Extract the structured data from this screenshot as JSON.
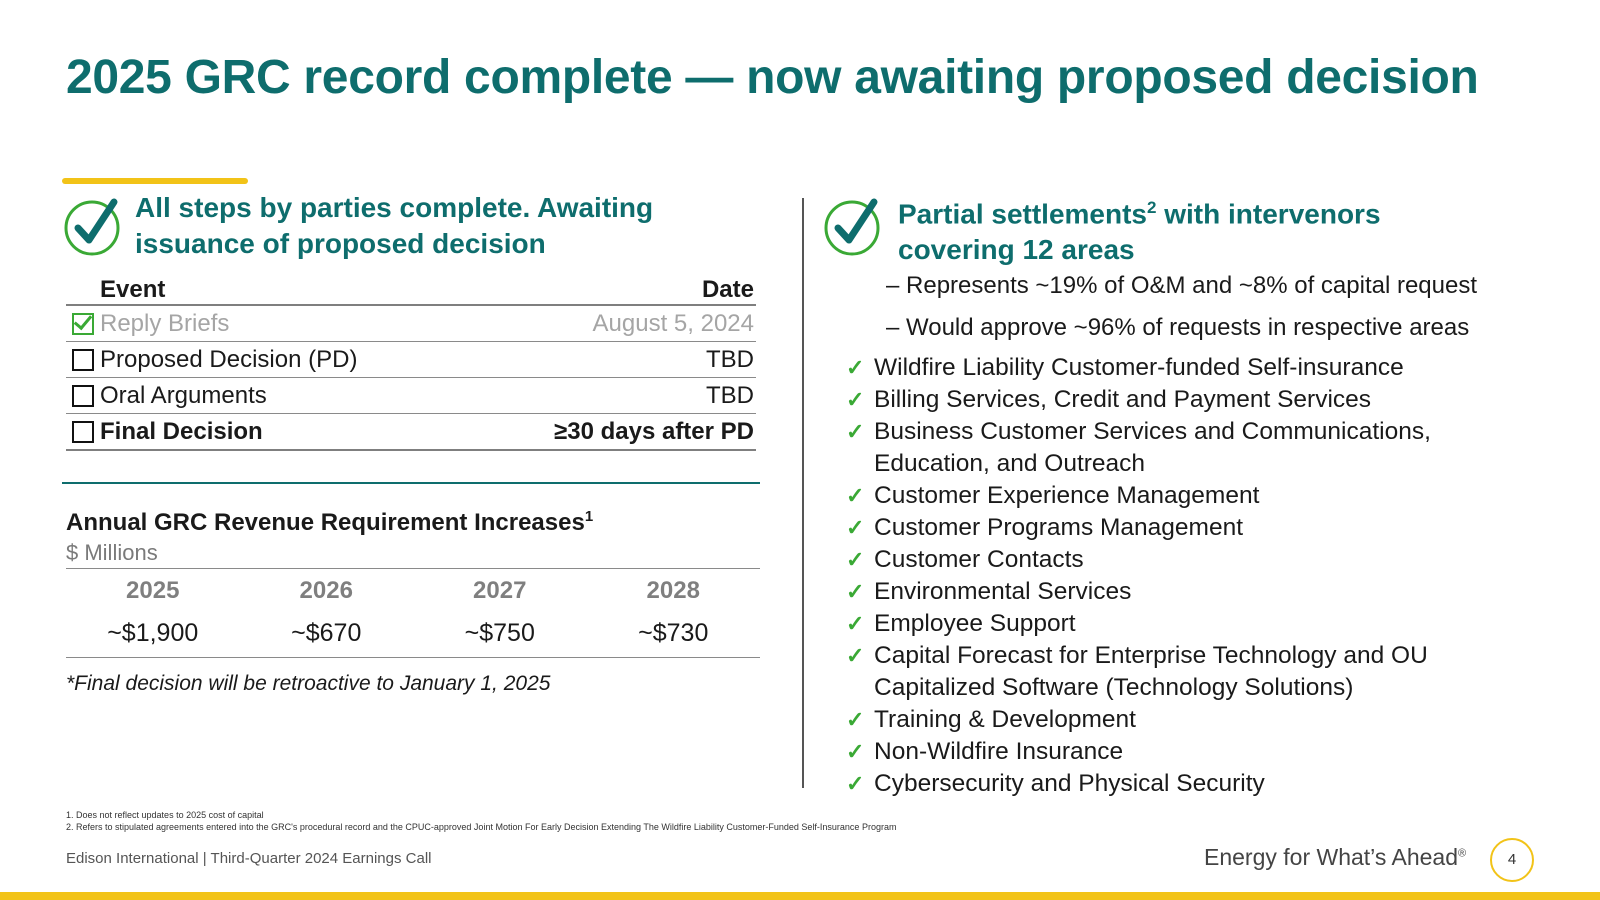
{
  "slide": {
    "title": "2025 GRC record complete — now awaiting proposed decision"
  },
  "left_panel": {
    "heading_line1": "All steps by parties complete. Awaiting",
    "heading_line2": "issuance of proposed decision",
    "table_header": {
      "event": "Event",
      "date": "Date"
    },
    "events": [
      {
        "event": "Reply Briefs",
        "date": "August 5, 2024",
        "status": "done"
      },
      {
        "event": "Proposed Decision (PD)",
        "date": "TBD",
        "status": "pending"
      },
      {
        "event": "Oral Arguments",
        "date": "TBD",
        "status": "pending"
      },
      {
        "event": "Final Decision",
        "date": "≥30 days after PD",
        "status": "pending"
      }
    ],
    "revenue_title": "Annual GRC Revenue Requirement Increases",
    "revenue_title_sup": "1",
    "revenue_unit": "$ Millions",
    "revenue_years": [
      "2025",
      "2026",
      "2027",
      "2028"
    ],
    "revenue_values": [
      "~$1,900",
      "~$670",
      "~$750",
      "~$730"
    ],
    "note": "*Final decision will be retroactive to January 1, 2025"
  },
  "right_panel": {
    "heading_line1": "Partial settlements",
    "heading_sup": "2",
    "heading_line1_rest": " with intervenors",
    "heading_line2": "covering 12 areas",
    "sub_bullets": [
      "– Represents ~19% of O&M and ~8% of capital request",
      "– Would approve ~96% of requests in respective areas"
    ],
    "areas": [
      "Wildfire Liability Customer-funded Self-insurance",
      "Billing Services, Credit and Payment Services",
      "Business Customer Services and Communications,\nEducation, and Outreach",
      "Customer Experience Management",
      "Customer Programs Management",
      "Customer Contacts",
      "Environmental Services",
      "Employee Support",
      "Capital Forecast for Enterprise Technology and OU\nCapitalized Software (Technology Solutions)",
      "Training & Development",
      "Non-Wildfire Insurance",
      "Cybersecurity and Physical Security"
    ]
  },
  "footnotes": [
    "1.   Does not reflect updates to 2025 cost of capital",
    "2.   Refers to stipulated agreements entered into the GRC's procedural record and the CPUC-approved Joint Motion For Early Decision Extending The Wildfire Liability Customer-Funded Self-Insurance Program"
  ],
  "footer": {
    "left": "Edison International |  Third-Quarter 2024 Earnings Call",
    "tagline": "Energy for What’s Ahead",
    "tagline_mark": "®",
    "page_number": "4"
  },
  "colors": {
    "teal": "#0e6d6d",
    "gold": "#f2c318",
    "green_check": "#3aa935"
  },
  "icons": {
    "panel_check": "check-circle-icon",
    "item_check": "checkmark-icon"
  }
}
